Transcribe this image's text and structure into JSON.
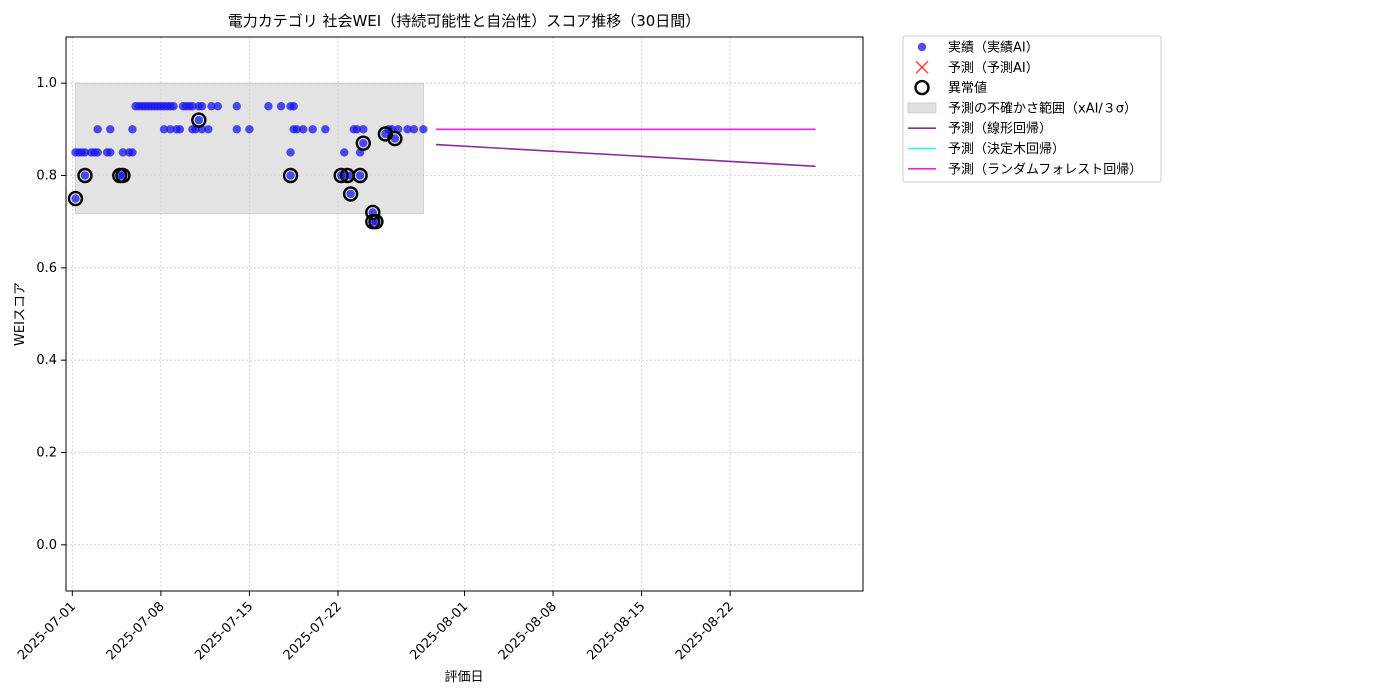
{
  "chart_data": {
    "type": "scatter",
    "title": "電力カテゴリ 社会WEI（持続可能性と自治性）スコア推移（30日間）",
    "xlabel": "評価日",
    "ylabel": "WEIスコア",
    "xlim": [
      "2025-06-30T12:00",
      "2025-09-01T12:00"
    ],
    "ylim": [
      -0.1,
      1.1
    ],
    "grid": true,
    "legend_position": "outside-top-right",
    "x_ticks": [
      "2025-07-01",
      "2025-07-08",
      "2025-07-15",
      "2025-07-22",
      "2025-08-01",
      "2025-08-08",
      "2025-08-15",
      "2025-08-22"
    ],
    "y_ticks": [
      "0.0",
      "0.2",
      "0.4",
      "0.6",
      "0.8",
      "1.0"
    ],
    "colors": {
      "actual": "#1515ee",
      "predicted": "#ee3333",
      "anomaly": "#000000",
      "uncertainty": "#d9d9d9",
      "linear": "#8b2a9a",
      "tree": "#22f0f0",
      "forest": "#ee22ee"
    },
    "legend": [
      {
        "key": "actual",
        "label": "実績（実績AI）",
        "icon": "circle-marker-icon"
      },
      {
        "key": "predicted",
        "label": "予測（予測AI）",
        "icon": "x-marker-icon"
      },
      {
        "key": "anomaly",
        "label": "異常値",
        "icon": "ring-marker-icon"
      },
      {
        "key": "uncertainty",
        "label": "予測の不確かさ範囲（xAI/３σ）",
        "icon": "band-swatch-icon"
      },
      {
        "key": "linear",
        "label": "予測（線形回帰）",
        "icon": "line-swatch-icon"
      },
      {
        "key": "tree",
        "label": "予測（決定木回帰）",
        "icon": "line-swatch-icon"
      },
      {
        "key": "forest",
        "label": "予測（ランダムフォレスト回帰）",
        "icon": "line-swatch-icon"
      }
    ],
    "series": [
      {
        "name": "実績（実績AI）",
        "points": [
          [
            "2025-07-01T06:00",
            0.75
          ],
          [
            "2025-07-01T06:00",
            0.85
          ],
          [
            "2025-07-01T12:00",
            0.85
          ],
          [
            "2025-07-01T18:00",
            0.85
          ],
          [
            "2025-07-02T00:00",
            0.8
          ],
          [
            "2025-07-02T00:00",
            0.85
          ],
          [
            "2025-07-02T12:00",
            0.85
          ],
          [
            "2025-07-02T18:00",
            0.85
          ],
          [
            "2025-07-03T00:00",
            0.9
          ],
          [
            "2025-07-03T00:00",
            0.85
          ],
          [
            "2025-07-03T18:00",
            0.85
          ],
          [
            "2025-07-04T00:00",
            0.85
          ],
          [
            "2025-07-04T00:00",
            0.9
          ],
          [
            "2025-07-04T18:00",
            0.8
          ],
          [
            "2025-07-05T00:00",
            0.8
          ],
          [
            "2025-07-05T00:00",
            0.85
          ],
          [
            "2025-07-05T12:00",
            0.85
          ],
          [
            "2025-07-05T18:00",
            0.85
          ],
          [
            "2025-07-05T18:00",
            0.9
          ],
          [
            "2025-07-06T00:00",
            0.95
          ],
          [
            "2025-07-06T06:00",
            0.95
          ],
          [
            "2025-07-06T12:00",
            0.95
          ],
          [
            "2025-07-06T18:00",
            0.95
          ],
          [
            "2025-07-07T00:00",
            0.95
          ],
          [
            "2025-07-07T06:00",
            0.95
          ],
          [
            "2025-07-07T12:00",
            0.95
          ],
          [
            "2025-07-07T18:00",
            0.95
          ],
          [
            "2025-07-08T00:00",
            0.95
          ],
          [
            "2025-07-08T06:00",
            0.95
          ],
          [
            "2025-07-08T06:00",
            0.9
          ],
          [
            "2025-07-08T12:00",
            0.95
          ],
          [
            "2025-07-08T18:00",
            0.95
          ],
          [
            "2025-07-08T18:00",
            0.9
          ],
          [
            "2025-07-09T00:00",
            0.95
          ],
          [
            "2025-07-09T06:00",
            0.9
          ],
          [
            "2025-07-09T12:00",
            0.9
          ],
          [
            "2025-07-09T18:00",
            0.95
          ],
          [
            "2025-07-10T00:00",
            0.95
          ],
          [
            "2025-07-10T06:00",
            0.95
          ],
          [
            "2025-07-10T12:00",
            0.9
          ],
          [
            "2025-07-10T12:00",
            0.95
          ],
          [
            "2025-07-10T18:00",
            0.9
          ],
          [
            "2025-07-11T00:00",
            0.92
          ],
          [
            "2025-07-11T00:00",
            0.95
          ],
          [
            "2025-07-11T06:00",
            0.95
          ],
          [
            "2025-07-11T06:00",
            0.9
          ],
          [
            "2025-07-11T18:00",
            0.9
          ],
          [
            "2025-07-12T00:00",
            0.95
          ],
          [
            "2025-07-12T12:00",
            0.95
          ],
          [
            "2025-07-14T00:00",
            0.9
          ],
          [
            "2025-07-14T00:00",
            0.95
          ],
          [
            "2025-07-15T00:00",
            0.9
          ],
          [
            "2025-07-16T12:00",
            0.95
          ],
          [
            "2025-07-17T12:00",
            0.95
          ],
          [
            "2025-07-18T06:00",
            0.95
          ],
          [
            "2025-07-18T06:00",
            0.85
          ],
          [
            "2025-07-18T06:00",
            0.8
          ],
          [
            "2025-07-18T12:00",
            0.95
          ],
          [
            "2025-07-18T12:00",
            0.9
          ],
          [
            "2025-07-18T18:00",
            0.9
          ],
          [
            "2025-07-19T06:00",
            0.9
          ],
          [
            "2025-07-20T00:00",
            0.9
          ],
          [
            "2025-07-21T00:00",
            0.9
          ],
          [
            "2025-07-22T06:00",
            0.8
          ],
          [
            "2025-07-22T12:00",
            0.85
          ],
          [
            "2025-07-22T12:00",
            0.8
          ],
          [
            "2025-07-23T00:00",
            0.8
          ],
          [
            "2025-07-23T00:00",
            0.76
          ],
          [
            "2025-07-23T06:00",
            0.9
          ],
          [
            "2025-07-23T12:00",
            0.9
          ],
          [
            "2025-07-23T18:00",
            0.85
          ],
          [
            "2025-07-23T18:00",
            0.8
          ],
          [
            "2025-07-24T00:00",
            0.87
          ],
          [
            "2025-07-24T00:00",
            0.9
          ],
          [
            "2025-07-24T18:00",
            0.72
          ],
          [
            "2025-07-24T18:00",
            0.7
          ],
          [
            "2025-07-25T00:00",
            0.7
          ],
          [
            "2025-07-25T18:00",
            0.89
          ],
          [
            "2025-07-26T00:00",
            0.9
          ],
          [
            "2025-07-26T06:00",
            0.9
          ],
          [
            "2025-07-26T12:00",
            0.88
          ],
          [
            "2025-07-26T18:00",
            0.9
          ],
          [
            "2025-07-27T12:00",
            0.9
          ],
          [
            "2025-07-28T00:00",
            0.9
          ],
          [
            "2025-07-28T18:00",
            0.9
          ]
        ]
      }
    ],
    "anomalies": [
      [
        "2025-07-01T06:00",
        0.75
      ],
      [
        "2025-07-02T00:00",
        0.8
      ],
      [
        "2025-07-04T18:00",
        0.8
      ],
      [
        "2025-07-05T00:00",
        0.8
      ],
      [
        "2025-07-11T00:00",
        0.92
      ],
      [
        "2025-07-18T06:00",
        0.8
      ],
      [
        "2025-07-22T06:00",
        0.8
      ],
      [
        "2025-07-22T18:00",
        0.8
      ],
      [
        "2025-07-23T00:00",
        0.76
      ],
      [
        "2025-07-23T18:00",
        0.8
      ],
      [
        "2025-07-24T00:00",
        0.87
      ],
      [
        "2025-07-24T18:00",
        0.72
      ],
      [
        "2025-07-24T18:00",
        0.7
      ],
      [
        "2025-07-25T00:00",
        0.7
      ],
      [
        "2025-07-25T18:00",
        0.89
      ],
      [
        "2025-07-26T12:00",
        0.88
      ]
    ],
    "uncertainty_band": {
      "x": [
        "2025-07-01T06:00",
        "2025-07-28T18:00"
      ],
      "y": [
        0.717,
        1.0
      ]
    },
    "forecast_lines": [
      {
        "key": "linear",
        "name": "予測（線形回帰）",
        "x": [
          "2025-07-29T18:00",
          "2025-08-28T18:00"
        ],
        "y": [
          0.867,
          0.82
        ]
      },
      {
        "key": "tree",
        "name": "予測（決定木回帰）",
        "x": [
          "2025-07-29T18:00",
          "2025-08-28T18:00"
        ],
        "y": [
          0.9,
          0.9
        ]
      },
      {
        "key": "forest",
        "name": "予測（ランダムフォレスト回帰）",
        "x": [
          "2025-07-29T18:00",
          "2025-08-28T18:00"
        ],
        "y": [
          0.9,
          0.9
        ]
      }
    ]
  }
}
